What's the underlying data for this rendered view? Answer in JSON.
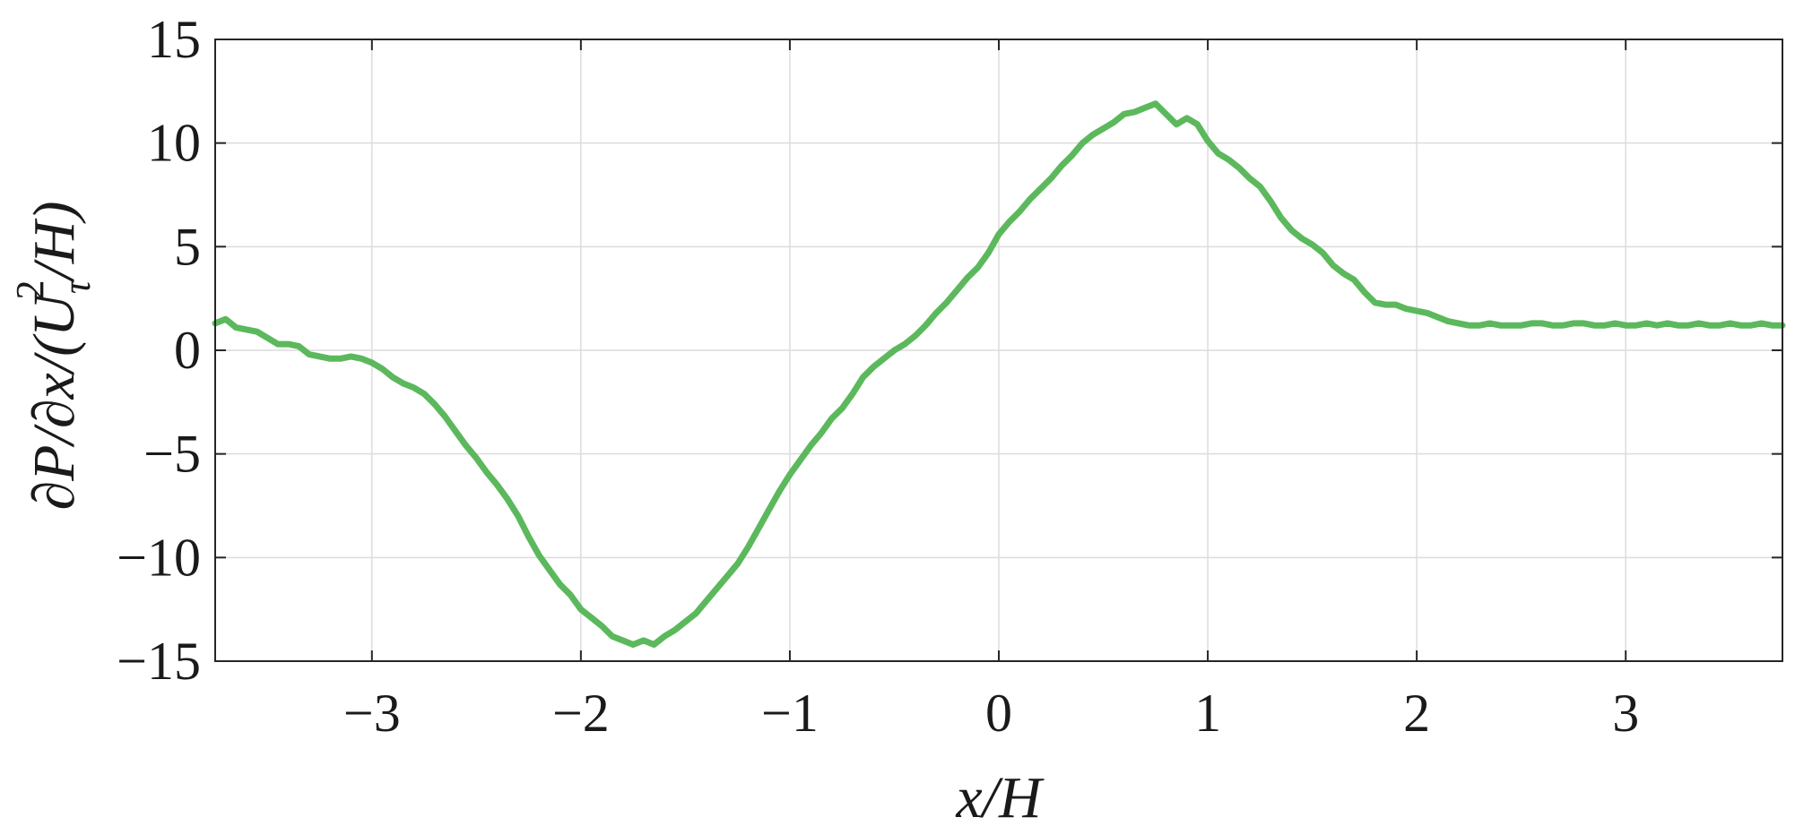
{
  "chart_data": {
    "type": "line",
    "xlabel": "x/H",
    "ylabel": "∂P/∂x/(U_τ^2/H)",
    "ylabel_parts": {
      "prefix": "∂P/∂x/(U",
      "superscript": "2",
      "subscript": "τ",
      "suffix": "/H)"
    },
    "xlim": [
      -3.75,
      3.75
    ],
    "ylim": [
      -15,
      15
    ],
    "x_ticks": [
      -3,
      -2,
      -1,
      0,
      1,
      2,
      3
    ],
    "x_tick_labels": [
      "−3",
      "−2",
      "−1",
      "0",
      "1",
      "2",
      "3"
    ],
    "y_ticks": [
      -15,
      -10,
      -5,
      0,
      5,
      10,
      15
    ],
    "y_tick_labels": [
      "−15",
      "−10",
      "−5",
      "0",
      "5",
      "10",
      "15"
    ],
    "grid": true,
    "series": [
      {
        "color": "#5cb85c",
        "x": [
          -3.75,
          -3.7,
          -3.65,
          -3.6,
          -3.55,
          -3.5,
          -3.45,
          -3.4,
          -3.35,
          -3.3,
          -3.25,
          -3.2,
          -3.15,
          -3.1,
          -3.05,
          -3.0,
          -2.95,
          -2.9,
          -2.85,
          -2.8,
          -2.75,
          -2.7,
          -2.65,
          -2.6,
          -2.55,
          -2.5,
          -2.45,
          -2.4,
          -2.35,
          -2.3,
          -2.25,
          -2.2,
          -2.15,
          -2.1,
          -2.05,
          -2.0,
          -1.95,
          -1.9,
          -1.85,
          -1.8,
          -1.75,
          -1.7,
          -1.65,
          -1.6,
          -1.55,
          -1.5,
          -1.45,
          -1.4,
          -1.35,
          -1.3,
          -1.25,
          -1.2,
          -1.15,
          -1.1,
          -1.05,
          -1.0,
          -0.95,
          -0.9,
          -0.85,
          -0.8,
          -0.75,
          -0.7,
          -0.65,
          -0.6,
          -0.55,
          -0.5,
          -0.45,
          -0.4,
          -0.35,
          -0.3,
          -0.25,
          -0.2,
          -0.15,
          -0.1,
          -0.05,
          0.0,
          0.05,
          0.1,
          0.15,
          0.2,
          0.25,
          0.3,
          0.35,
          0.4,
          0.45,
          0.5,
          0.55,
          0.6,
          0.65,
          0.7,
          0.75,
          0.8,
          0.85,
          0.9,
          0.95,
          1.0,
          1.05,
          1.1,
          1.15,
          1.2,
          1.25,
          1.3,
          1.35,
          1.4,
          1.45,
          1.5,
          1.55,
          1.6,
          1.65,
          1.7,
          1.75,
          1.8,
          1.85,
          1.9,
          1.95,
          2.0,
          2.05,
          2.1,
          2.15,
          2.2,
          2.25,
          2.3,
          2.35,
          2.4,
          2.45,
          2.5,
          2.55,
          2.6,
          2.65,
          2.7,
          2.75,
          2.8,
          2.85,
          2.9,
          2.95,
          3.0,
          3.05,
          3.1,
          3.15,
          3.2,
          3.25,
          3.3,
          3.35,
          3.4,
          3.45,
          3.5,
          3.55,
          3.6,
          3.65,
          3.7,
          3.75
        ],
        "y": [
          1.3,
          1.5,
          1.1,
          1.0,
          0.9,
          0.6,
          0.3,
          0.3,
          0.2,
          -0.2,
          -0.3,
          -0.4,
          -0.4,
          -0.3,
          -0.4,
          -0.6,
          -0.9,
          -1.3,
          -1.6,
          -1.8,
          -2.1,
          -2.6,
          -3.2,
          -3.9,
          -4.6,
          -5.2,
          -5.9,
          -6.5,
          -7.2,
          -8.0,
          -9.0,
          -9.9,
          -10.6,
          -11.3,
          -11.8,
          -12.5,
          -12.9,
          -13.3,
          -13.8,
          -14.0,
          -14.2,
          -14.0,
          -14.2,
          -13.8,
          -13.5,
          -13.1,
          -12.7,
          -12.1,
          -11.5,
          -10.9,
          -10.3,
          -9.5,
          -8.6,
          -7.7,
          -6.8,
          -6.0,
          -5.3,
          -4.6,
          -4.0,
          -3.3,
          -2.8,
          -2.1,
          -1.3,
          -0.8,
          -0.4,
          0.0,
          0.3,
          0.7,
          1.2,
          1.8,
          2.3,
          2.9,
          3.5,
          4.0,
          4.7,
          5.6,
          6.2,
          6.7,
          7.3,
          7.8,
          8.3,
          8.9,
          9.4,
          10.0,
          10.4,
          10.7,
          11.0,
          11.4,
          11.5,
          11.7,
          11.9,
          11.4,
          10.9,
          11.2,
          10.9,
          10.1,
          9.5,
          9.2,
          8.8,
          8.3,
          7.9,
          7.2,
          6.4,
          5.8,
          5.4,
          5.1,
          4.7,
          4.1,
          3.7,
          3.4,
          2.8,
          2.3,
          2.2,
          2.2,
          2.0,
          1.9,
          1.8,
          1.6,
          1.4,
          1.3,
          1.2,
          1.2,
          1.3,
          1.2,
          1.2,
          1.2,
          1.3,
          1.3,
          1.2,
          1.2,
          1.3,
          1.3,
          1.2,
          1.2,
          1.3,
          1.2,
          1.2,
          1.3,
          1.2,
          1.3,
          1.2,
          1.2,
          1.3,
          1.2,
          1.2,
          1.3,
          1.2,
          1.2,
          1.3,
          1.2,
          1.2
        ]
      }
    ]
  }
}
